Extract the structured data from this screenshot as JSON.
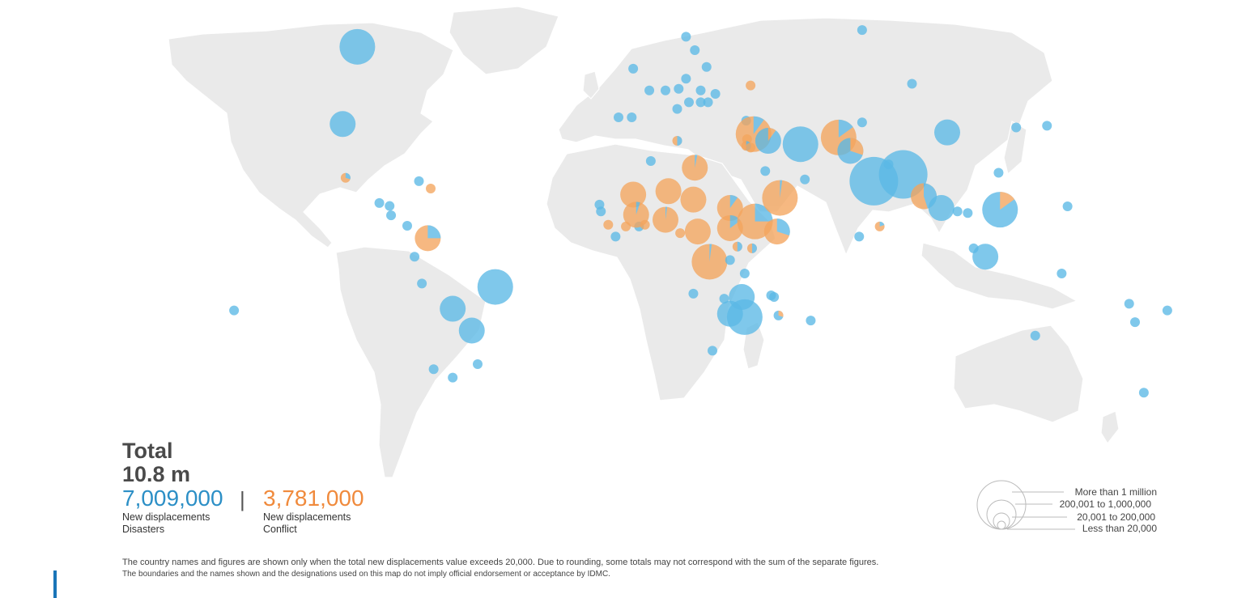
{
  "summary": {
    "total_label": "Total",
    "total_value": "10.8 m",
    "disasters": {
      "value": "7,009,000",
      "line1": "New displacements",
      "line2": "Disasters"
    },
    "divider": "|",
    "conflict": {
      "value": "3,781,000",
      "line1": "New displacements",
      "line2": "Conflict"
    }
  },
  "size_legend": [
    "More than 1 million",
    "200,001 to 1,000,000",
    "20,001 to 200,000",
    "Less than 20,000"
  ],
  "footnotes": [
    "The country names and figures are shown only when the total new displacements value exceeds 20,000. Due to rounding, some totals may not correspond with the sum of the separate figures.",
    "The boundaries and the names shown and the designations used on this map do not imply official endorsement or acceptance by IDMC."
  ],
  "colors": {
    "disasters": "#5bb8e6",
    "conflict": "#f4a55e",
    "land": "#eaeaea"
  },
  "markers": [
    {
      "lon": -97,
      "lat": 61,
      "r": "l",
      "c": 0
    },
    {
      "lon": -102,
      "lat": 38,
      "r": "m",
      "c": 0
    },
    {
      "lon": -101,
      "lat": 22,
      "r": "s",
      "c": 0.7
    },
    {
      "lon": -76,
      "lat": 21,
      "r": "s",
      "c": 0
    },
    {
      "lon": -72,
      "lat": 18.8,
      "r": "s",
      "c": 1
    },
    {
      "lon": -89.5,
      "lat": 14.5,
      "r": "s",
      "c": 0
    },
    {
      "lon": -86,
      "lat": 13.6,
      "r": "s",
      "c": 0
    },
    {
      "lon": -85.5,
      "lat": 10.8,
      "r": "s",
      "c": 0
    },
    {
      "lon": -80,
      "lat": 7.7,
      "r": "s",
      "c": 0
    },
    {
      "lon": -73,
      "lat": 4,
      "r": "m",
      "c": 0.75
    },
    {
      "lon": -77.5,
      "lat": -1.5,
      "r": "s",
      "c": 0
    },
    {
      "lon": -75,
      "lat": -9.5,
      "r": "s",
      "c": 0
    },
    {
      "lon": -50,
      "lat": -10.5,
      "r": "l",
      "c": 0
    },
    {
      "lon": -64.5,
      "lat": -17,
      "r": "m",
      "c": 0
    },
    {
      "lon": -58,
      "lat": -23.5,
      "r": "m",
      "c": 0
    },
    {
      "lon": -71,
      "lat": -35,
      "r": "s",
      "c": 0
    },
    {
      "lon": -64.5,
      "lat": -37.5,
      "r": "s",
      "c": 0
    },
    {
      "lon": -56,
      "lat": -33.5,
      "r": "s",
      "c": 0
    },
    {
      "lon": -139,
      "lat": -17.5,
      "r": "s",
      "c": 0
    },
    {
      "lon": 15,
      "lat": 64,
      "r": "s",
      "c": 0
    },
    {
      "lon": 18,
      "lat": 60,
      "r": "s",
      "c": 0
    },
    {
      "lon": -3,
      "lat": 54.5,
      "r": "s",
      "c": 0
    },
    {
      "lon": 22,
      "lat": 55,
      "r": "s",
      "c": 0
    },
    {
      "lon": 15,
      "lat": 51.5,
      "r": "s",
      "c": 0
    },
    {
      "lon": 2.5,
      "lat": 48,
      "r": "s",
      "c": 0
    },
    {
      "lon": 8,
      "lat": 48,
      "r": "s",
      "c": 0
    },
    {
      "lon": 12.5,
      "lat": 48.5,
      "r": "s",
      "c": 0
    },
    {
      "lon": 20,
      "lat": 48,
      "r": "s",
      "c": 0
    },
    {
      "lon": 25,
      "lat": 47,
      "r": "s",
      "c": 0
    },
    {
      "lon": 16,
      "lat": 44.5,
      "r": "s",
      "c": 0
    },
    {
      "lon": 20,
      "lat": 44.5,
      "r": "s",
      "c": 0
    },
    {
      "lon": 12,
      "lat": 42.5,
      "r": "s",
      "c": 0
    },
    {
      "lon": 22.5,
      "lat": 44.5,
      "r": "s",
      "c": 0
    },
    {
      "lon": 37,
      "lat": 49.5,
      "r": "s",
      "c": 1
    },
    {
      "lon": -8,
      "lat": 40,
      "r": "s",
      "c": 0
    },
    {
      "lon": -3.5,
      "lat": 40,
      "r": "s",
      "c": 0
    },
    {
      "lon": 12,
      "lat": 33,
      "r": "s",
      "c": 0.5
    },
    {
      "lon": 3,
      "lat": 27,
      "r": "s",
      "c": 0
    },
    {
      "lon": 18,
      "lat": 25,
      "r": "m",
      "c": 0.97
    },
    {
      "lon": 35.5,
      "lat": 39,
      "r": "s",
      "c": 0
    },
    {
      "lon": 38,
      "lat": 35,
      "r": "l",
      "c": 0.9
    },
    {
      "lon": 35.8,
      "lat": 33.5,
      "r": "s",
      "c": 1
    },
    {
      "lon": 35.5,
      "lat": 31.5,
      "r": "s",
      "c": 0.5
    },
    {
      "lon": 37,
      "lat": 31,
      "r": "s",
      "c": 1
    },
    {
      "lon": 43,
      "lat": 33,
      "r": "m",
      "c": 0.1
    },
    {
      "lon": 54,
      "lat": 32,
      "r": "l",
      "c": 0
    },
    {
      "lon": 67,
      "lat": 34,
      "r": "l",
      "c": 0.85
    },
    {
      "lon": 71,
      "lat": 30,
      "r": "m",
      "c": 0.3
    },
    {
      "lon": 42,
      "lat": 24,
      "r": "s",
      "c": 0
    },
    {
      "lon": 55.5,
      "lat": 21.5,
      "r": "s",
      "c": 0
    },
    {
      "lon": 75,
      "lat": 38.5,
      "r": "s",
      "c": 0
    },
    {
      "lon": 79,
      "lat": 21,
      "r": "xl",
      "c": 0
    },
    {
      "lon": 89,
      "lat": 23,
      "r": "xl",
      "c": 0
    },
    {
      "lon": 84,
      "lat": 26,
      "r": "s",
      "c": 0
    },
    {
      "lon": 96,
      "lat": 16.5,
      "r": "m",
      "c": 0.55
    },
    {
      "lon": 102,
      "lat": 13,
      "r": "m",
      "c": 0
    },
    {
      "lon": 107.5,
      "lat": 12,
      "r": "s",
      "c": 0
    },
    {
      "lon": 111,
      "lat": 11.5,
      "r": "s",
      "c": 0
    },
    {
      "lon": 74,
      "lat": 4.5,
      "r": "s",
      "c": 0
    },
    {
      "lon": 81,
      "lat": 7.5,
      "r": "s",
      "c": 0.8
    },
    {
      "lon": 104,
      "lat": 35.5,
      "r": "m",
      "c": 0
    },
    {
      "lon": 92,
      "lat": 50,
      "r": "s",
      "c": 0
    },
    {
      "lon": 75,
      "lat": 66,
      "r": "s",
      "c": 0
    },
    {
      "lon": 127.5,
      "lat": 37,
      "r": "s",
      "c": 0
    },
    {
      "lon": 138,
      "lat": 37.5,
      "r": "s",
      "c": 0
    },
    {
      "lon": 121.5,
      "lat": 23.5,
      "r": "s",
      "c": 0
    },
    {
      "lon": 122,
      "lat": 12.5,
      "r": "l",
      "c": 0.15
    },
    {
      "lon": 117,
      "lat": -1.5,
      "r": "m",
      "c": 0
    },
    {
      "lon": 113,
      "lat": 1,
      "r": "s",
      "c": 0
    },
    {
      "lon": 145,
      "lat": 13.5,
      "r": "s",
      "c": 0
    },
    {
      "lon": 143,
      "lat": -6.5,
      "r": "s",
      "c": 0
    },
    {
      "lon": 134,
      "lat": -25,
      "r": "s",
      "c": 0
    },
    {
      "lon": 166,
      "lat": -15.5,
      "r": "s",
      "c": 0
    },
    {
      "lon": 168,
      "lat": -21,
      "r": "s",
      "c": 0
    },
    {
      "lon": 179,
      "lat": -17.5,
      "r": "s",
      "c": 0
    },
    {
      "lon": 171,
      "lat": -42,
      "r": "s",
      "c": 0
    },
    {
      "lon": -14.5,
      "lat": 14,
      "r": "s",
      "c": 0
    },
    {
      "lon": -14,
      "lat": 12,
      "r": "s",
      "c": 0
    },
    {
      "lon": -11.5,
      "lat": 8,
      "r": "s",
      "c": 1
    },
    {
      "lon": -9,
      "lat": 4.5,
      "r": "s",
      "c": 0
    },
    {
      "lon": -5.5,
      "lat": 7.5,
      "r": "s",
      "c": 1
    },
    {
      "lon": -1,
      "lat": 7.5,
      "r": "s",
      "c": 0
    },
    {
      "lon": 1,
      "lat": 8,
      "r": "s",
      "c": 1
    },
    {
      "lon": -3,
      "lat": 17,
      "r": "m",
      "c": 1
    },
    {
      "lon": -2,
      "lat": 11,
      "r": "m",
      "c": 0.95
    },
    {
      "lon": 9,
      "lat": 18,
      "r": "m",
      "c": 1
    },
    {
      "lon": 17.5,
      "lat": 15.5,
      "r": "m",
      "c": 1
    },
    {
      "lon": 8,
      "lat": 9.5,
      "r": "m",
      "c": 0.98
    },
    {
      "lon": 13,
      "lat": 5.5,
      "r": "s",
      "c": 1
    },
    {
      "lon": 19,
      "lat": 6,
      "r": "m",
      "c": 1
    },
    {
      "lon": 30,
      "lat": 13,
      "r": "m",
      "c": 0.9
    },
    {
      "lon": 30,
      "lat": 7,
      "r": "m",
      "c": 0.85
    },
    {
      "lon": 38.5,
      "lat": 9,
      "r": "l",
      "c": 0.75
    },
    {
      "lon": 47,
      "lat": 16,
      "r": "l",
      "c": 0.98
    },
    {
      "lon": 46,
      "lat": 6,
      "r": "m",
      "c": 0.7
    },
    {
      "lon": 32.5,
      "lat": 1.5,
      "r": "s",
      "c": 0.5
    },
    {
      "lon": 37.5,
      "lat": 1,
      "r": "s",
      "c": 0.5
    },
    {
      "lon": 23,
      "lat": -3,
      "r": "l",
      "c": 0.98
    },
    {
      "lon": 30,
      "lat": -2.5,
      "r": "s",
      "c": 0
    },
    {
      "lon": 35,
      "lat": -6.5,
      "r": "s",
      "c": 0
    },
    {
      "lon": 17.5,
      "lat": -12.5,
      "r": "s",
      "c": 0
    },
    {
      "lon": 28,
      "lat": -14,
      "r": "s",
      "c": 0
    },
    {
      "lon": 34,
      "lat": -13.5,
      "r": "m",
      "c": 0
    },
    {
      "lon": 30,
      "lat": -18.5,
      "r": "m",
      "c": 0
    },
    {
      "lon": 35,
      "lat": -19.5,
      "r": "l",
      "c": 0
    },
    {
      "lon": 44,
      "lat": -13,
      "r": "s",
      "c": 0
    },
    {
      "lon": 45,
      "lat": -13.5,
      "r": "s",
      "c": 0
    },
    {
      "lon": 46.5,
      "lat": -19,
      "r": "s",
      "c": 0.3
    },
    {
      "lon": 57.5,
      "lat": -20.5,
      "r": "s",
      "c": 0
    },
    {
      "lon": 24,
      "lat": -29.5,
      "r": "s",
      "c": 0
    }
  ]
}
